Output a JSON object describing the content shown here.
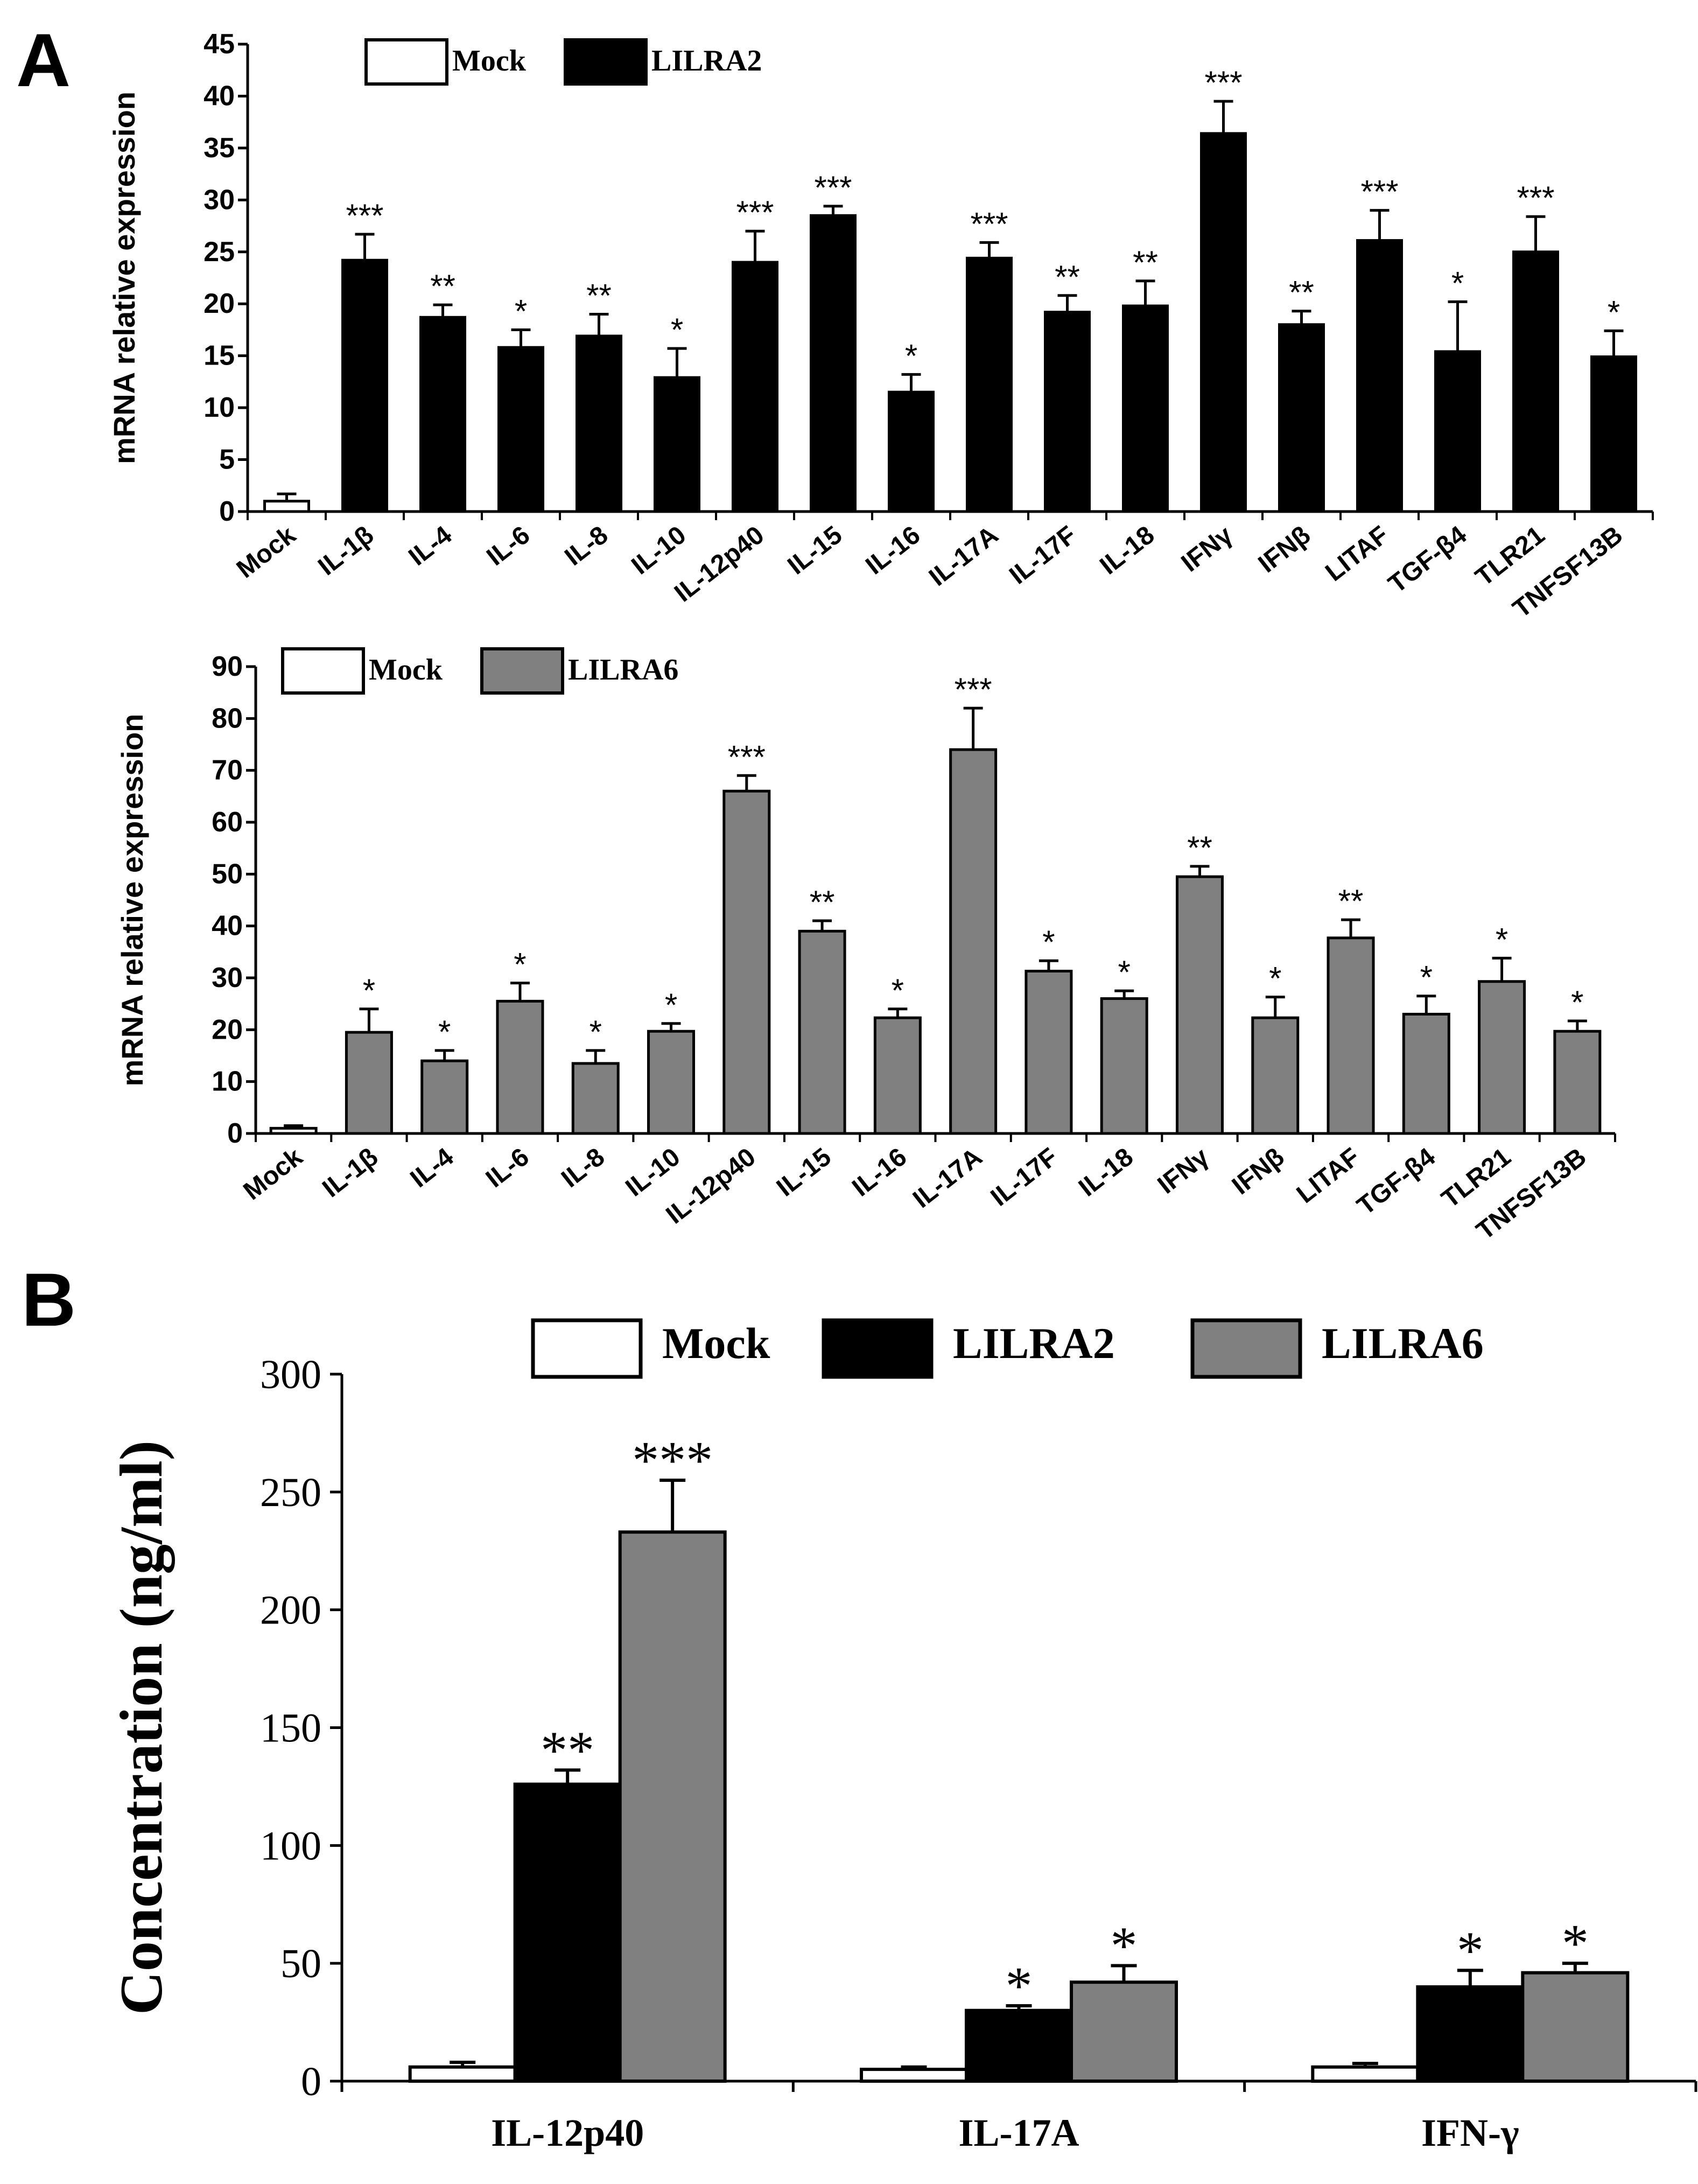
{
  "panel_labels": {
    "a": "A",
    "b": "B"
  },
  "colors": {
    "mock": "#ffffff",
    "lilra2": "#000000",
    "lilra6": "#808080",
    "stroke": "#000000"
  },
  "chart_data": [
    {
      "id": "a1",
      "type": "bar",
      "ylabel": "mRNA relative expression",
      "ylim": [
        0,
        45
      ],
      "yticks": [
        0,
        5,
        10,
        15,
        20,
        25,
        30,
        35,
        40,
        45
      ],
      "legend": [
        {
          "name": "Mock",
          "color_key": "mock"
        },
        {
          "name": "LILRA2",
          "color_key": "lilra2"
        }
      ],
      "categories": [
        "Mock",
        "IL-1β",
        "IL-4",
        "IL-6",
        "IL-8",
        "IL-10",
        "IL-12p40",
        "IL-15",
        "IL-16",
        "IL-17A",
        "IL-17F",
        "IL-18",
        "IFNγ",
        "IFNβ",
        "LITAF",
        "TGF-β4",
        "TLR21",
        "TNFSF13B"
      ],
      "values": [
        1,
        24.2,
        18.7,
        15.8,
        16.9,
        12.9,
        24.0,
        28.5,
        11.5,
        24.4,
        19.2,
        19.8,
        36.4,
        18.0,
        26.1,
        15.4,
        25.0,
        14.9
      ],
      "errors": [
        0.7,
        2.5,
        1.2,
        1.7,
        2.1,
        2.8,
        3.0,
        0.9,
        1.7,
        1.5,
        1.6,
        2.4,
        3.1,
        1.3,
        2.9,
        4.8,
        3.4,
        2.5
      ],
      "bar_color_keys": [
        "mock",
        "lilra2",
        "lilra2",
        "lilra2",
        "lilra2",
        "lilra2",
        "lilra2",
        "lilra2",
        "lilra2",
        "lilra2",
        "lilra2",
        "lilra2",
        "lilra2",
        "lilra2",
        "lilra2",
        "lilra2",
        "lilra2",
        "lilra2"
      ],
      "significance": [
        "",
        "***",
        "**",
        "*",
        "**",
        "*",
        "***",
        "***",
        "*",
        "***",
        "**",
        "**",
        "***",
        "**",
        "***",
        "*",
        "***",
        "*"
      ]
    },
    {
      "id": "a2",
      "type": "bar",
      "ylabel": "mRNA relative expression",
      "ylim": [
        0,
        90
      ],
      "yticks": [
        0,
        10,
        20,
        30,
        40,
        50,
        60,
        70,
        80,
        90
      ],
      "legend": [
        {
          "name": "Mock",
          "color_key": "mock"
        },
        {
          "name": "LILRA6",
          "color_key": "lilra6"
        }
      ],
      "categories": [
        "Mock",
        "IL-1β",
        "IL-4",
        "IL-6",
        "IL-8",
        "IL-10",
        "IL-12p40",
        "IL-15",
        "IL-16",
        "IL-17A",
        "IL-17F",
        "IL-18",
        "IFNγ",
        "IFNβ",
        "LITAF",
        "TGF-β4",
        "TLR21",
        "TNFSF13B"
      ],
      "values": [
        1,
        19.5,
        14.0,
        25.5,
        13.5,
        19.7,
        66.0,
        39.0,
        22.3,
        74.0,
        31.3,
        26.0,
        49.5,
        22.3,
        37.7,
        23.0,
        29.3,
        19.7
      ],
      "errors": [
        0.5,
        4.5,
        2.0,
        3.5,
        2.5,
        1.5,
        3.0,
        2.0,
        1.7,
        8.0,
        2.0,
        1.5,
        2.0,
        4.0,
        3.5,
        3.5,
        4.5,
        2.0
      ],
      "bar_color_keys": [
        "mock",
        "lilra6",
        "lilra6",
        "lilra6",
        "lilra6",
        "lilra6",
        "lilra6",
        "lilra6",
        "lilra6",
        "lilra6",
        "lilra6",
        "lilra6",
        "lilra6",
        "lilra6",
        "lilra6",
        "lilra6",
        "lilra6",
        "lilra6"
      ],
      "significance": [
        "",
        "*",
        "*",
        "*",
        "*",
        "*",
        "***",
        "**",
        "*",
        "***",
        "*",
        "*",
        "**",
        "*",
        "**",
        "*",
        "*",
        "*"
      ]
    },
    {
      "id": "b",
      "type": "bar",
      "ylabel": "Concentration (ng/ml)",
      "ylim": [
        0,
        300
      ],
      "yticks": [
        0,
        50,
        100,
        150,
        200,
        250,
        300
      ],
      "categories": [
        "IL-12p40",
        "IL-17A",
        "IFN-γ"
      ],
      "series": [
        {
          "name": "Mock",
          "color_key": "mock",
          "values": [
            6,
            5,
            6
          ],
          "errors": [
            2,
            1,
            1.5
          ],
          "significance": [
            "",
            "",
            ""
          ]
        },
        {
          "name": "LILRA2",
          "color_key": "lilra2",
          "values": [
            126,
            30,
            40
          ],
          "errors": [
            6,
            2,
            7
          ],
          "significance": [
            "**",
            "*",
            "*"
          ]
        },
        {
          "name": "LILRA6",
          "color_key": "lilra6",
          "values": [
            233,
            42,
            46
          ],
          "errors": [
            22,
            7,
            4
          ],
          "significance": [
            "***",
            "*",
            "*"
          ]
        }
      ]
    }
  ]
}
